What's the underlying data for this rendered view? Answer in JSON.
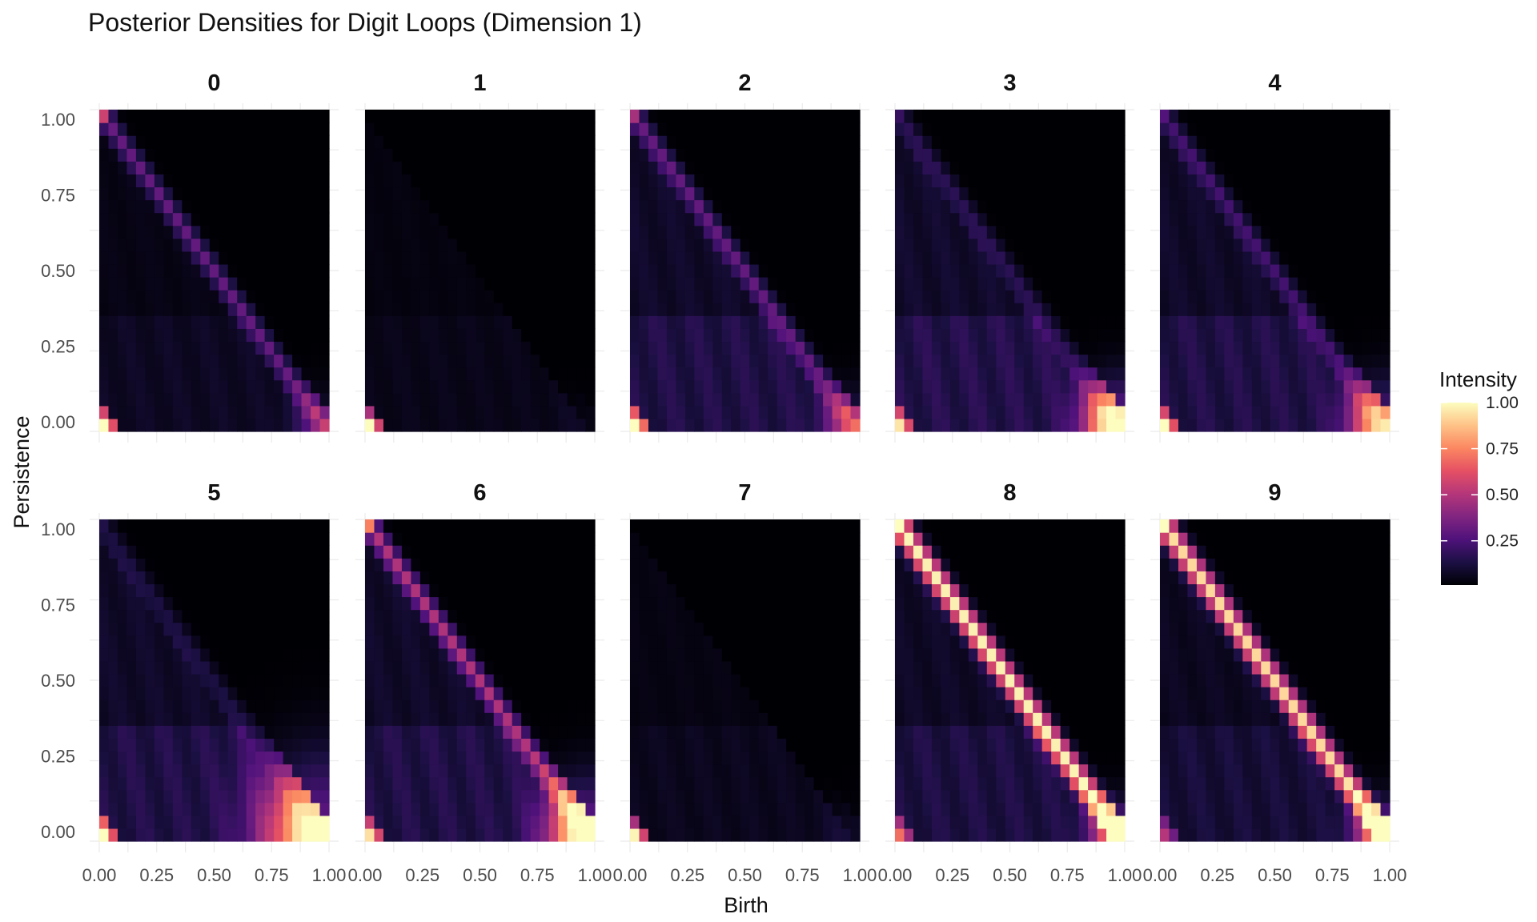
{
  "chart_data": {
    "type": "heatmap",
    "title": "Posterior Densities for Digit Loops (Dimension 1)",
    "xlabel": "Birth",
    "ylabel": "Persistence",
    "xlim": [
      0,
      1
    ],
    "ylim": [
      0,
      1
    ],
    "grid": true,
    "x_ticks": [
      "0.00",
      "0.25",
      "0.50",
      "0.75",
      "1.00"
    ],
    "y_ticks": [
      "0.00",
      "0.25",
      "0.50",
      "0.75",
      "1.00"
    ],
    "grid_resolution": [
      25,
      25
    ],
    "legend": {
      "title": "Intensity",
      "position": "right",
      "ticks": [
        "0.25",
        "0.50",
        "0.75",
        "1.00"
      ],
      "tick_values": [
        0.25,
        0.5,
        0.75,
        1.0
      ],
      "colormap": "magma",
      "colors": [
        "#000004",
        "#1c1044",
        "#4f127b",
        "#812581",
        "#b5367a",
        "#e55064",
        "#fb8761",
        "#fec287",
        "#fcfdbf"
      ]
    },
    "panels": [
      {
        "label": "0",
        "diag": 0.3,
        "diag_width": 0.03,
        "corner": 0.98,
        "corner_top": 0.5,
        "triangle": 0.06,
        "tip": 0.25,
        "tip_width": 0.08,
        "top_left": 0.4
      },
      {
        "label": "1",
        "diag": 0.0,
        "diag_width": 0.03,
        "corner": 0.95,
        "corner_top": 0.42,
        "triangle": 0.04,
        "tip": 0.03,
        "tip_width": 0.08,
        "top_left": 0.0
      },
      {
        "label": "2",
        "diag": 0.3,
        "diag_width": 0.03,
        "corner": 0.98,
        "corner_top": 0.48,
        "triangle": 0.13,
        "tip": 0.4,
        "tip_width": 0.08,
        "top_left": 0.25
      },
      {
        "label": "3",
        "diag": 0.16,
        "diag_width": 0.03,
        "corner": 0.78,
        "corner_top": 0.4,
        "triangle": 0.14,
        "tip": 0.95,
        "tip_width": 0.1,
        "top_left": 0.04
      },
      {
        "label": "4",
        "diag": 0.22,
        "diag_width": 0.03,
        "corner": 0.85,
        "corner_top": 0.42,
        "triangle": 0.13,
        "tip": 0.75,
        "tip_width": 0.1,
        "top_left": 0.06
      },
      {
        "label": "5",
        "diag": 0.12,
        "diag_width": 0.03,
        "corner": 0.85,
        "corner_top": 0.5,
        "triangle": 0.13,
        "tip": 0.97,
        "tip_width": 0.17,
        "top_left": 0.02
      },
      {
        "label": "6",
        "diag": 0.48,
        "diag_width": 0.03,
        "corner": 0.78,
        "corner_top": 0.38,
        "triangle": 0.13,
        "tip": 0.95,
        "tip_width": 0.12,
        "top_left": 0.4
      },
      {
        "label": "7",
        "diag": 0.0,
        "diag_width": 0.03,
        "corner": 0.92,
        "corner_top": 0.4,
        "triangle": 0.05,
        "tip": 0.06,
        "tip_width": 0.08,
        "top_left": 0.0
      },
      {
        "label": "8",
        "diag": 0.97,
        "diag_width": 0.035,
        "corner": 0.55,
        "corner_top": 0.3,
        "triangle": 0.12,
        "tip": 0.6,
        "tip_width": 0.08,
        "top_left": 0.55
      },
      {
        "label": "9",
        "diag": 0.92,
        "diag_width": 0.035,
        "corner": 0.38,
        "corner_top": 0.22,
        "triangle": 0.1,
        "tip": 0.72,
        "tip_width": 0.08,
        "top_left": 0.38
      }
    ]
  }
}
